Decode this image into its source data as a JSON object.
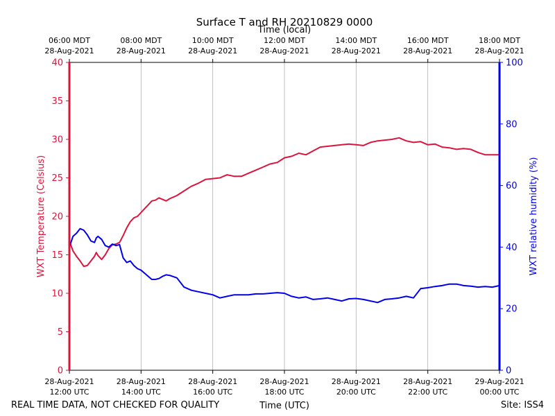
{
  "chart_data": {
    "type": "line",
    "title": "Surface T and RH 20210829 0000",
    "top_axis_label": "Time (local)",
    "xlabel": "Time (UTC)",
    "ylabel_left": "WXT Temperature (Celsius)",
    "ylabel_right": "WXT relative humidity (%)",
    "footer_left": "REAL TIME DATA, NOT CHECKED FOR QUALITY",
    "footer_right": "Site: ISS4",
    "xlim_hours_utc": [
      12,
      24
    ],
    "ylim_left": [
      0,
      40
    ],
    "ylim_right": [
      0,
      100
    ],
    "grid": "vertical",
    "colors": {
      "temperature": "#dc143c",
      "humidity": "#0000ee",
      "grid": "#b0b0b0",
      "axis": "#000000"
    },
    "left_ticks": [
      "0",
      "5",
      "10",
      "15",
      "20",
      "25",
      "30",
      "35",
      "40"
    ],
    "right_ticks": [
      "0",
      "20",
      "40",
      "60",
      "80",
      "100"
    ],
    "bottom_ticks": [
      {
        "hour": 12,
        "date": "28-Aug-2021",
        "time": "12:00 UTC"
      },
      {
        "hour": 14,
        "date": "28-Aug-2021",
        "time": "14:00 UTC"
      },
      {
        "hour": 16,
        "date": "28-Aug-2021",
        "time": "16:00 UTC"
      },
      {
        "hour": 18,
        "date": "28-Aug-2021",
        "time": "18:00 UTC"
      },
      {
        "hour": 20,
        "date": "28-Aug-2021",
        "time": "20:00 UTC"
      },
      {
        "hour": 22,
        "date": "28-Aug-2021",
        "time": "22:00 UTC"
      },
      {
        "hour": 24,
        "date": "29-Aug-2021",
        "time": "00:00 UTC"
      }
    ],
    "top_ticks": [
      {
        "hour": 12,
        "time": "06:00 MDT",
        "date": "28-Aug-2021"
      },
      {
        "hour": 14,
        "time": "08:00 MDT",
        "date": "28-Aug-2021"
      },
      {
        "hour": 16,
        "time": "10:00 MDT",
        "date": "28-Aug-2021"
      },
      {
        "hour": 18,
        "time": "12:00 MDT",
        "date": "28-Aug-2021"
      },
      {
        "hour": 20,
        "time": "14:00 MDT",
        "date": "28-Aug-2021"
      },
      {
        "hour": 22,
        "time": "16:00 MDT",
        "date": "28-Aug-2021"
      },
      {
        "hour": 24,
        "time": "18:00 MDT",
        "date": "28-Aug-2021"
      }
    ],
    "series": [
      {
        "name": "WXT Temperature",
        "axis": "left",
        "x": [
          12.0,
          12.1,
          12.2,
          12.3,
          12.4,
          12.5,
          12.6,
          12.7,
          12.75,
          12.8,
          12.9,
          13.0,
          13.1,
          13.2,
          13.3,
          13.4,
          13.5,
          13.6,
          13.7,
          13.8,
          13.9,
          14.0,
          14.1,
          14.2,
          14.3,
          14.4,
          14.5,
          14.6,
          14.7,
          14.8,
          15.0,
          15.2,
          15.4,
          15.6,
          15.8,
          16.0,
          16.2,
          16.4,
          16.6,
          16.8,
          17.0,
          17.2,
          17.4,
          17.6,
          17.8,
          18.0,
          18.2,
          18.4,
          18.6,
          18.8,
          19.0,
          19.2,
          19.4,
          19.6,
          19.8,
          20.0,
          20.2,
          20.4,
          20.6,
          20.8,
          21.0,
          21.2,
          21.4,
          21.6,
          21.8,
          22.0,
          22.2,
          22.4,
          22.6,
          22.8,
          23.0,
          23.2,
          23.4,
          23.6,
          23.8,
          24.0
        ],
        "values": [
          16.8,
          15.5,
          14.8,
          14.2,
          13.5,
          13.6,
          14.2,
          14.8,
          15.3,
          14.9,
          14.4,
          15.0,
          15.8,
          16.3,
          16.4,
          16.6,
          17.5,
          18.5,
          19.3,
          19.8,
          20.0,
          20.5,
          21.0,
          21.5,
          22.0,
          22.1,
          22.4,
          22.2,
          22.0,
          22.3,
          22.7,
          23.3,
          23.9,
          24.3,
          24.8,
          24.9,
          25.0,
          25.4,
          25.2,
          25.2,
          25.6,
          26.0,
          26.4,
          26.8,
          27.0,
          27.6,
          27.8,
          28.2,
          28.0,
          28.5,
          29.0,
          29.1,
          29.2,
          29.3,
          29.4,
          29.3,
          29.2,
          29.6,
          29.8,
          29.9,
          30.0,
          30.2,
          29.8,
          29.6,
          29.7,
          29.3,
          29.4,
          29.0,
          28.9,
          28.7,
          28.8,
          28.7,
          28.3,
          28.0,
          28.0,
          28.0
        ]
      },
      {
        "name": "WXT relative humidity",
        "axis": "right",
        "x": [
          12.0,
          12.1,
          12.2,
          12.3,
          12.4,
          12.5,
          12.6,
          12.7,
          12.75,
          12.8,
          12.9,
          13.0,
          13.1,
          13.2,
          13.3,
          13.4,
          13.5,
          13.6,
          13.7,
          13.8,
          13.9,
          14.0,
          14.1,
          14.2,
          14.3,
          14.4,
          14.5,
          14.6,
          14.7,
          14.8,
          15.0,
          15.2,
          15.4,
          15.6,
          15.8,
          16.0,
          16.2,
          16.4,
          16.6,
          16.8,
          17.0,
          17.2,
          17.4,
          17.6,
          17.8,
          18.0,
          18.2,
          18.4,
          18.6,
          18.8,
          19.0,
          19.2,
          19.4,
          19.6,
          19.8,
          20.0,
          20.2,
          20.4,
          20.6,
          20.8,
          21.0,
          21.2,
          21.4,
          21.6,
          21.8,
          22.0,
          22.2,
          22.4,
          22.6,
          22.8,
          23.0,
          23.2,
          23.4,
          23.6,
          23.8,
          24.0
        ],
        "values": [
          40.0,
          43.5,
          44.5,
          46.0,
          45.5,
          44.0,
          42.0,
          41.5,
          43.0,
          43.5,
          42.5,
          40.5,
          40.0,
          41.0,
          40.5,
          40.8,
          36.5,
          35.0,
          35.5,
          34.0,
          33.0,
          32.5,
          31.5,
          30.5,
          29.5,
          29.5,
          29.8,
          30.5,
          31.0,
          30.8,
          30.0,
          27.0,
          26.0,
          25.5,
          25.0,
          24.5,
          23.5,
          24.0,
          24.5,
          24.5,
          24.5,
          24.8,
          24.8,
          25.0,
          25.2,
          25.0,
          24.0,
          23.5,
          23.8,
          23.0,
          23.2,
          23.5,
          23.0,
          22.5,
          23.2,
          23.3,
          23.0,
          22.5,
          22.0,
          23.0,
          23.2,
          23.5,
          24.0,
          23.5,
          26.5,
          26.8,
          27.2,
          27.5,
          28.0,
          28.0,
          27.5,
          27.3,
          27.0,
          27.2,
          27.0,
          27.5
        ]
      }
    ]
  }
}
